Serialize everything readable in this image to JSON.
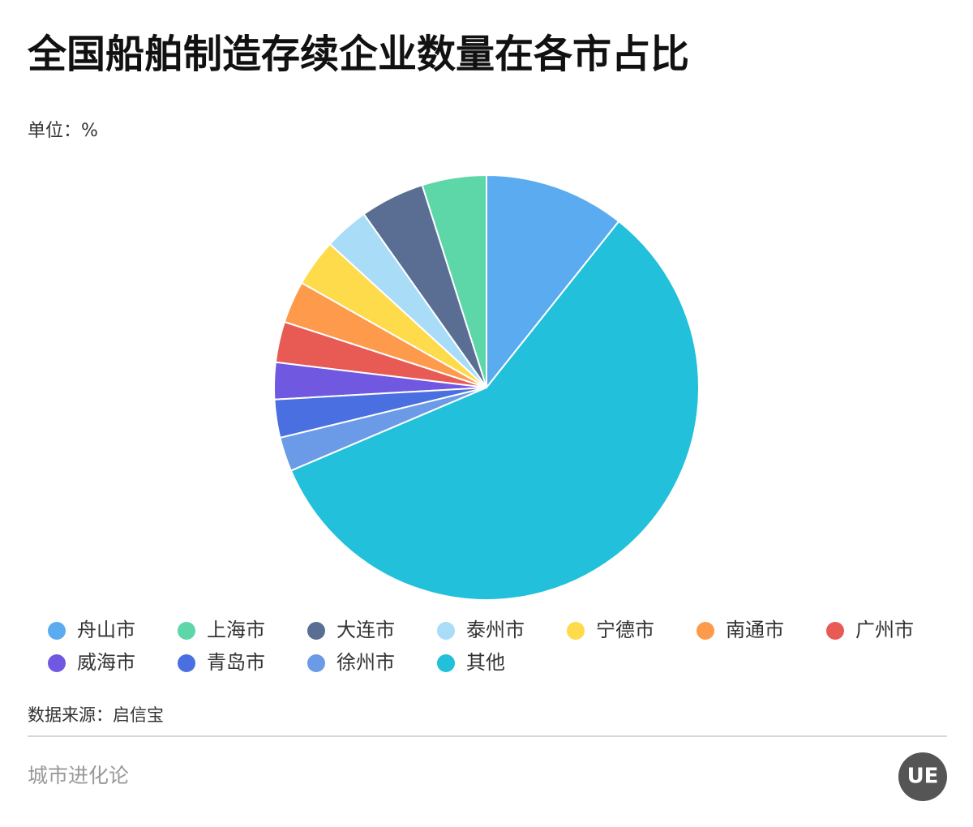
{
  "chart_data": {
    "type": "pie",
    "title": "全国船舶制造存续企业数量在各市占比",
    "subtitle": "单位：%",
    "categories": [
      "舟山市",
      "上海市",
      "大连市",
      "泰州市",
      "宁德市",
      "南通市",
      "广州市",
      "威海市",
      "青岛市",
      "徐州市",
      "其他"
    ],
    "values": [
      10.7,
      4.9,
      4.9,
      3.4,
      3.6,
      3.2,
      3.1,
      2.8,
      2.9,
      2.6,
      57.9
    ],
    "colors": [
      "#5aabf0",
      "#5dd6a8",
      "#5a6e94",
      "#a8dcf7",
      "#fddb4a",
      "#fd9a4b",
      "#e85b55",
      "#7059e0",
      "#4a6fe0",
      "#6b9ae6",
      "#22c0da"
    ],
    "source": "数据来源：启信宝"
  },
  "footer": {
    "brand": "城市进化论",
    "logo": "UE"
  }
}
